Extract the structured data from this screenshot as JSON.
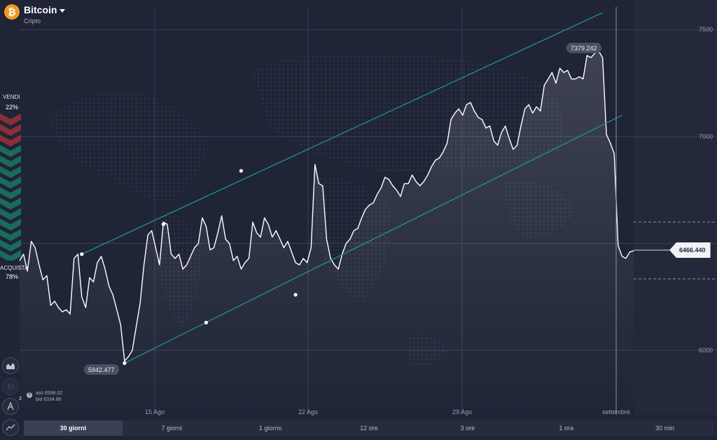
{
  "asset": {
    "name": "Bitcoin",
    "category": "Cripto",
    "icon": "bitcoin-icon"
  },
  "sentiment": {
    "sell_label": "VENDI",
    "sell_pct": "22%",
    "buy_label": "ACQUISTA",
    "buy_pct": "78%",
    "sell_share": 0.22,
    "buy_share": 0.78
  },
  "tools": [
    {
      "name": "chart-type-button",
      "icon": "area-chart-icon"
    },
    {
      "name": "timeframe-button",
      "icon": "clock-icon",
      "label": "1h"
    },
    {
      "name": "indicators-button",
      "icon": "indicators-icon",
      "badge": "2"
    },
    {
      "name": "drawing-tools-button",
      "icon": "trend-line-icon"
    }
  ],
  "quote": {
    "ask": "ask 6598.02",
    "bid": "bid 6334.86"
  },
  "current_price_label": "6466.440",
  "high_label": "7379.242",
  "low_label": "5942.477",
  "periods": [
    {
      "label": "30 giorni",
      "active": true
    },
    {
      "label": "7 giorni",
      "active": false
    },
    {
      "label": "1 giorno",
      "active": false
    },
    {
      "label": "12 ore",
      "active": false
    },
    {
      "label": "3 ore",
      "active": false
    },
    {
      "label": "1 ora",
      "active": false
    },
    {
      "label": "30 min",
      "active": false
    }
  ],
  "colors": {
    "background": "#1f2437",
    "line": "#ffffff",
    "channel": "#1f9e8a",
    "sell": "#8a2f34",
    "buy": "#1a6b5c",
    "accent": "#f39a1e"
  },
  "chart_data": {
    "type": "line",
    "y_ticks": [
      "6000",
      "7000",
      "7500"
    ],
    "x_ticks": [
      "15 Ago",
      "22 Ago",
      "29 Ago",
      "settembre"
    ],
    "ylim": [
      5700,
      7650
    ],
    "series": [
      {
        "values": [
          6420,
          6450,
          6370,
          6510,
          6480,
          6400,
          6330,
          6350,
          6210,
          6230,
          6200,
          6180,
          6190,
          6170,
          6430,
          6450,
          6250,
          6200,
          6340,
          6320,
          6410,
          6440,
          6380,
          6300,
          6260,
          6190,
          6120,
          5950,
          5970,
          6000,
          6110,
          6220,
          6400,
          6540,
          6560,
          6480,
          6400,
          6600,
          6590,
          6450,
          6430,
          6450,
          6380,
          6400,
          6440,
          6480,
          6500,
          6620,
          6580,
          6470,
          6480,
          6550,
          6630,
          6520,
          6500,
          6420,
          6440,
          6380,
          6410,
          6430,
          6600,
          6550,
          6530,
          6620,
          6590,
          6530,
          6560,
          6520,
          6480,
          6510,
          6460,
          6410,
          6400,
          6430,
          6410,
          6480,
          6870,
          6780,
          6770,
          6520,
          6430,
          6400,
          6380,
          6450,
          6500,
          6520,
          6560,
          6570,
          6620,
          6660,
          6680,
          6690,
          6730,
          6760,
          6810,
          6800,
          6770,
          6750,
          6720,
          6780,
          6780,
          6820,
          6790,
          6770,
          6790,
          6820,
          6860,
          6890,
          6900,
          6930,
          6970,
          7080,
          7110,
          7130,
          7100,
          7150,
          7160,
          7120,
          7090,
          7080,
          7040,
          7050,
          6980,
          6960,
          7020,
          7050,
          6990,
          6940,
          6960,
          7050,
          7130,
          7150,
          7110,
          7140,
          7120,
          7240,
          7270,
          7300,
          7250,
          7320,
          7300,
          7310,
          7270,
          7270,
          7280,
          7270,
          7380,
          7370,
          7390,
          7400,
          7370,
          7010,
          6970,
          6920,
          6490,
          6440,
          6430,
          6460,
          6466
        ]
      }
    ],
    "channel": {
      "upper": [
        [
          16,
          6450
        ],
        [
          37,
          6590
        ],
        [
          57,
          6840
        ],
        [
          150,
          7580
        ]
      ],
      "lower": [
        [
          27,
          5940
        ],
        [
          48,
          6130
        ],
        [
          71,
          6260
        ],
        [
          155,
          7100
        ]
      ]
    }
  }
}
